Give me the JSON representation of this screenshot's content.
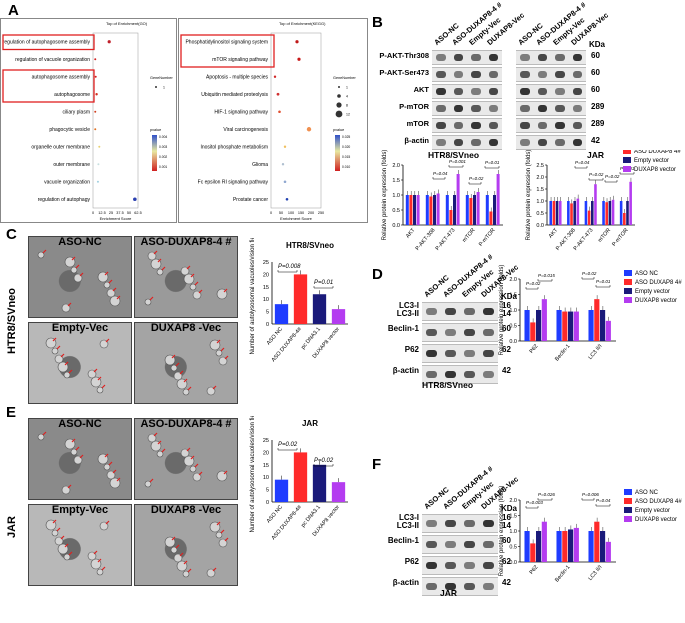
{
  "panels": {
    "A": "A",
    "B": "B",
    "C": "C",
    "D": "D",
    "E": "E",
    "F": "F"
  },
  "enrichment": {
    "go_title": "Top of Enrichment(GO)",
    "kegg_title": "Top of Enrichment(KEGG)",
    "xlabel": "Enrichment Score",
    "go_terms": [
      "regulation of autophagosome assembly",
      "regulation of vacuole organization",
      "autophagosome assembly",
      "autophagosome",
      "ciliary plasm",
      "phagocytic vesicle",
      "organelle outer membrane",
      "outer membrane",
      "vacuole organization",
      "regulation of autophagy"
    ],
    "kegg_terms": [
      "Phosphatidylinositol signaling system",
      "mTOR signaling pathway",
      "Apoptosis - multiple species",
      "Ubiquitin mediated proteolysis",
      "HIF-1 signaling pathway",
      "Viral carcinogenesis",
      "Inositol phosphate metabolism",
      "Glioma",
      "Fc epsilon RI signaling pathway",
      "Prostate cancer"
    ],
    "go_ticks": [
      "0",
      "12.5",
      "25",
      "37.5",
      "50",
      "62.5"
    ],
    "kegg_ticks": [
      "0",
      "50",
      "100",
      "150",
      "200",
      "250"
    ],
    "legend_genenumber": "GeneNumber",
    "legend_pvalue": "pvalue",
    "gene_sizes": [
      "1",
      "4",
      "8",
      "12"
    ],
    "pvalue_ticks": [
      "0.004",
      "0.003",
      "0.002",
      "0.001"
    ],
    "kegg_pvalue_ticks": [
      "0.025",
      "0.020",
      "0.015",
      "0.010"
    ]
  },
  "blot_B": {
    "lanes_left": [
      "ASO-NC",
      "ASO-DUXAP8-4 #",
      "Empty-Vec",
      "DUXAP8-Vec"
    ],
    "lanes_right": [
      "ASO-NC",
      "ASO-DUXAP8-4 #",
      "Empty-Vec",
      "DUXAP8-Vec"
    ],
    "rows": [
      "P-AKT-Thr308",
      "P-AKT-Ser473",
      "AKT",
      "P-mTOR",
      "mTOR",
      "β-actin"
    ],
    "kda_header": "KDa",
    "kda": [
      "60",
      "60",
      "60",
      "289",
      "289",
      "42"
    ],
    "cell_left": "HTR8/SVneo",
    "cell_right": "JAR"
  },
  "bar_B": {
    "ylabel": "Relative protein expression (folds)",
    "categories": [
      "AKT",
      "P-AKT-308",
      "P-AKT-473",
      "mTOR",
      "P-mTOR"
    ],
    "annot_left": [
      "P=0.04",
      "P=0.001",
      "P=0.02",
      "P=0.01"
    ],
    "annot_right": [
      "P=0.04",
      "P=0.02",
      "P=0.02",
      "P=0.01"
    ],
    "legend": [
      "ASO NC",
      "ASO DUXAP8 4#",
      "Empty vector",
      "DUXAP8 vector"
    ],
    "yticks": [
      "0.0",
      "0.5",
      "1.0",
      "1.5",
      "2.0"
    ]
  },
  "em_C": {
    "captions": [
      "ASO-NC",
      "ASO-DUXAP8-4 #",
      "Empty-Vec",
      "DUXAP8 -Vec"
    ],
    "side": "HTR8/SVneo"
  },
  "bar_C": {
    "title": "HTR8/SVneo",
    "ylabel": "Number of autolysosomal vacuoles/vision field",
    "categories": [
      "ASO NC",
      "ASO DUXAP8-4#",
      "pc DNA3.1",
      "DUXAP8 vector"
    ],
    "p1": "P=0.008",
    "p2": "P=0.01",
    "yticks": [
      "0",
      "5",
      "10",
      "15",
      "20",
      "25"
    ]
  },
  "blot_D": {
    "lanes": [
      "ASO-NC",
      "ASO-DUXAP8-4 #",
      "Empty-Vec",
      "DUXAP8-Vec"
    ],
    "rows": [
      "LC3-I",
      "LC3-II",
      "Beclin-1",
      "P62",
      "β-actin"
    ],
    "kda_header": "KDa",
    "kda": [
      "16",
      "14",
      "60",
      "62",
      "42"
    ],
    "cell": "HTR8/SVneo"
  },
  "bar_D": {
    "ylabel": "Relative protein expression (folds)",
    "categories": [
      "P62",
      "Beclin-1",
      "LC3 II/I"
    ],
    "annot": [
      "P=0.02",
      "P=0.015",
      "P=0.02",
      "P=0.01"
    ],
    "legend": [
      "ASO NC",
      "ASO DUXAP8 4#",
      "Empty vector",
      "DUXAP8 vector"
    ],
    "yticks": [
      "0.0",
      "0.5",
      "1.0",
      "1.5",
      "2.0"
    ]
  },
  "em_E": {
    "captions": [
      "ASO-NC",
      "ASO-DUXAP8-4 #",
      "Empty-Vec",
      "DUXAP8 -Vec"
    ],
    "side": "JAR"
  },
  "bar_E": {
    "title": "JAR",
    "ylabel": "Number of autolysosomal vacuoles/vision field",
    "categories": [
      "ASO NC",
      "ASO DUXAP8-4#",
      "pc DNA3.1",
      "DUXAP8 vector"
    ],
    "p1": "P=0.02",
    "p2": "P=0.02",
    "yticks": [
      "0",
      "5",
      "10",
      "15",
      "20",
      "25"
    ]
  },
  "blot_F": {
    "lanes": [
      "ASO-NC",
      "ASO-DUXAP8-4 #",
      "Empty-Vec",
      "DUXAP8-Vec"
    ],
    "rows": [
      "LC3-I",
      "LC3-II",
      "Beclin-1",
      "P62",
      "β-actin"
    ],
    "kda_header": "KDa",
    "kda": [
      "16",
      "14",
      "60",
      "62",
      "42"
    ],
    "cell": "JAR"
  },
  "bar_F": {
    "ylabel": "Relative protein expression (folds)",
    "categories": [
      "P62",
      "Beclin-1",
      "LC3 II/I"
    ],
    "annot": [
      "P=0.003",
      "P=0.026",
      "P=0.006",
      "P=0.04"
    ],
    "legend": [
      "ASO NC",
      "ASO DUXAP8 4#",
      "Empty vector",
      "DUXAP8 vector"
    ],
    "yticks": [
      "0.0",
      "0.5",
      "1.0",
      "1.5",
      "2.0"
    ]
  },
  "colors": {
    "aso_nc": "#1f3cff",
    "aso_duxap8": "#ff2a2a",
    "empty": "#1a1a7a",
    "duxap8": "#b43cf0",
    "highlight": "#e02020"
  },
  "chart_data": [
    {
      "type": "bar",
      "categories": [
        "AKT",
        "P-AKT-308",
        "P-AKT-473",
        "mTOR",
        "P-mTOR"
      ],
      "series": [
        {
          "name": "ASO NC",
          "values": [
            1.0,
            1.0,
            1.0,
            1.0,
            1.0
          ]
        },
        {
          "name": "ASO DUXAP8 4#",
          "values": [
            1.0,
            0.95,
            0.5,
            0.9,
            0.45
          ]
        },
        {
          "name": "Empty vector",
          "values": [
            1.0,
            1.0,
            1.0,
            1.0,
            1.0
          ]
        },
        {
          "name": "DUXAP8 vector",
          "values": [
            1.0,
            1.05,
            1.7,
            1.1,
            1.7
          ]
        }
      ],
      "ylabel": "Relative protein expression (folds)",
      "ylim": [
        0,
        2.0
      ]
    },
    {
      "type": "bar",
      "categories": [
        "AKT",
        "P-AKT-308",
        "P-AKT-473",
        "mTOR",
        "P-mTOR"
      ],
      "series": [
        {
          "name": "ASO NC",
          "values": [
            1.0,
            1.0,
            1.0,
            1.0,
            1.0
          ]
        },
        {
          "name": "ASO DUXAP8 4#",
          "values": [
            1.0,
            0.9,
            0.6,
            0.95,
            0.5
          ]
        },
        {
          "name": "Empty vector",
          "values": [
            1.0,
            1.0,
            1.0,
            1.0,
            1.0
          ]
        },
        {
          "name": "DUXAP8 vector",
          "values": [
            1.0,
            1.1,
            1.7,
            1.05,
            1.8
          ]
        }
      ],
      "ylabel": "Relative protein expression (folds)",
      "ylim": [
        0,
        2.5
      ]
    },
    {
      "type": "bar",
      "title": "HTR8/SVneo",
      "categories": [
        "ASO NC",
        "ASO DUXAP8-4#",
        "pc DNA3.1",
        "DUXAP8 vector"
      ],
      "values": [
        8,
        20,
        12,
        6
      ],
      "ylabel": "Number of autolysosomal vacuoles/vision field",
      "ylim": [
        0,
        25
      ]
    },
    {
      "type": "bar",
      "categories": [
        "P62",
        "Beclin-1",
        "LC3 II/I"
      ],
      "series": [
        {
          "name": "ASO NC",
          "values": [
            1.0,
            1.0,
            1.0
          ]
        },
        {
          "name": "ASO DUXAP8 4#",
          "values": [
            0.6,
            0.95,
            1.35
          ]
        },
        {
          "name": "Empty vector",
          "values": [
            1.0,
            0.95,
            1.0
          ]
        },
        {
          "name": "DUXAP8 vector",
          "values": [
            1.35,
            0.95,
            0.65
          ]
        }
      ],
      "ylabel": "Relative protein expression (folds)",
      "ylim": [
        0,
        2.0
      ]
    },
    {
      "type": "bar",
      "title": "JAR",
      "categories": [
        "ASO NC",
        "ASO DUXAP8-4#",
        "pc DNA3.1",
        "DUXAP8 vector"
      ],
      "values": [
        9,
        20,
        15,
        8
      ],
      "ylabel": "Number of autolysosomal vacuoles/vision field",
      "ylim": [
        0,
        25
      ]
    },
    {
      "type": "bar",
      "categories": [
        "P62",
        "Beclin-1",
        "LC3 II/I"
      ],
      "series": [
        {
          "name": "ASO NC",
          "values": [
            1.0,
            1.0,
            1.0
          ]
        },
        {
          "name": "ASO DUXAP8 4#",
          "values": [
            0.6,
            1.0,
            1.3
          ]
        },
        {
          "name": "Empty vector",
          "values": [
            1.0,
            1.05,
            1.0
          ]
        },
        {
          "name": "DUXAP8 vector",
          "values": [
            1.3,
            1.1,
            0.65
          ]
        }
      ],
      "ylabel": "Relative protein expression (folds)",
      "ylim": [
        0,
        2.0
      ]
    }
  ]
}
